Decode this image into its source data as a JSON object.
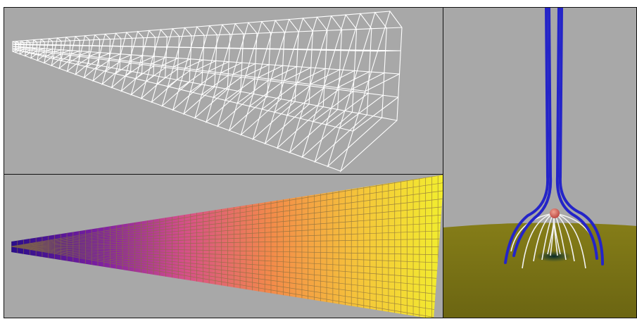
{
  "scene": {
    "background_color": "#a8a8a8",
    "divider_color": "#111111"
  },
  "panels": {
    "wireframe": {
      "line_color": "#ffffff",
      "columns": 34,
      "rows": 4
    },
    "colored_mesh": {
      "gradient_stops": [
        "#2a0d8a",
        "#7a1fa0",
        "#d64f8a",
        "#f38a4a",
        "#f5c43a",
        "#f2ee2e"
      ],
      "grid_line_color": "#8a7040"
    },
    "field_lines": {
      "ground_color": "#6b6512",
      "open_line_color": "#2424c8",
      "closed_line_color": "#f2f2f2",
      "source_sphere_color": "#c0504a",
      "footpoint_color": "#0d3a3a"
    }
  }
}
